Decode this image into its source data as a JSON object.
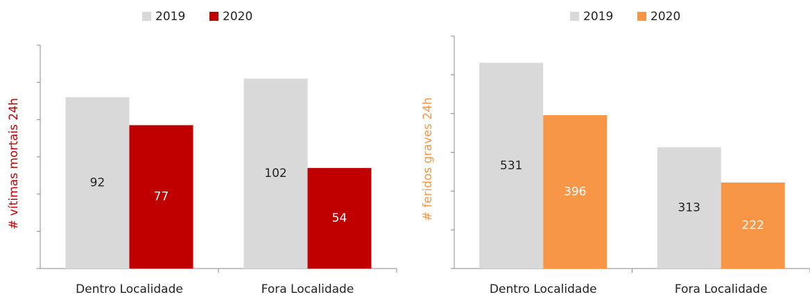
{
  "chart_data": [
    {
      "type": "bar",
      "y_label": "# vítimas mortais 24h",
      "categories": [
        "Dentro Localidade",
        "Fora Localidade"
      ],
      "series": [
        {
          "name": "2019",
          "color": "#d9d9d9",
          "values": [
            92,
            102
          ]
        },
        {
          "name": "2020",
          "color": "#c00000",
          "values": [
            77,
            54
          ]
        }
      ],
      "ylim": [
        0,
        120
      ],
      "yticks": [
        0,
        20,
        40,
        60,
        80,
        100,
        120
      ],
      "legend": "top"
    },
    {
      "type": "bar",
      "y_label": "# feridos graves 24h",
      "categories": [
        "Dentro Localidade",
        "Fora Localidade"
      ],
      "series": [
        {
          "name": "2019",
          "color": "#d9d9d9",
          "values": [
            531,
            313
          ]
        },
        {
          "name": "2020",
          "color": "#f79646",
          "values": [
            396,
            222
          ]
        }
      ],
      "ylim": [
        0,
        600
      ],
      "yticks": [
        0,
        100,
        200,
        300,
        400,
        500,
        600
      ],
      "legend": "top"
    }
  ]
}
